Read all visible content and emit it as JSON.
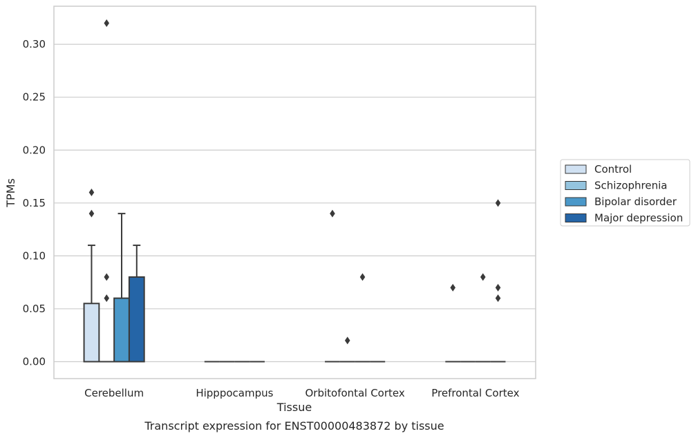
{
  "chart_data": {
    "type": "box",
    "xlabel": "Tissue",
    "ylabel": "TPMs",
    "caption": "Transcript expression for ENST00000483872 by tissue",
    "categories": [
      "Cerebellum",
      "Hipppocampus",
      "Orbitofontal Cortex",
      "Prefrontal Cortex"
    ],
    "ylim": [
      -0.016,
      0.336
    ],
    "yticks": [
      "0.00",
      "0.05",
      "0.10",
      "0.15",
      "0.20",
      "0.25",
      "0.30"
    ],
    "grid": true,
    "legend_position": "right",
    "series": [
      {
        "name": "Control",
        "color": "#d0e1f2",
        "boxes": [
          {
            "q1": 0,
            "median": 0,
            "q3": 0.055,
            "whisker_low": 0,
            "whisker_high": 0.11,
            "outliers": [
              0.14,
              0.16
            ]
          },
          {
            "q1": 0,
            "median": 0,
            "q3": 0,
            "whisker_low": 0,
            "whisker_high": 0,
            "outliers": []
          },
          {
            "q1": 0,
            "median": 0,
            "q3": 0,
            "whisker_low": 0,
            "whisker_high": 0,
            "outliers": [
              0.14
            ]
          },
          {
            "q1": 0,
            "median": 0,
            "q3": 0,
            "whisker_low": 0,
            "whisker_high": 0,
            "outliers": [
              0.07
            ]
          }
        ]
      },
      {
        "name": "Schizophrenia",
        "color": "#94c4df",
        "boxes": [
          {
            "q1": 0,
            "median": 0,
            "q3": 0,
            "whisker_low": 0,
            "whisker_high": 0,
            "outliers": [
              0.06,
              0.08,
              0.32
            ]
          },
          {
            "q1": 0,
            "median": 0,
            "q3": 0,
            "whisker_low": 0,
            "whisker_high": 0,
            "outliers": []
          },
          {
            "q1": 0,
            "median": 0,
            "q3": 0,
            "whisker_low": 0,
            "whisker_high": 0,
            "outliers": [
              0.02
            ]
          },
          {
            "q1": 0,
            "median": 0,
            "q3": 0,
            "whisker_low": 0,
            "whisker_high": 0,
            "outliers": []
          }
        ]
      },
      {
        "name": "Bipolar disorder",
        "color": "#4a98c9",
        "boxes": [
          {
            "q1": 0,
            "median": 0,
            "q3": 0.06,
            "whisker_low": 0,
            "whisker_high": 0.14,
            "outliers": []
          },
          {
            "q1": 0,
            "median": 0,
            "q3": 0,
            "whisker_low": 0,
            "whisker_high": 0,
            "outliers": []
          },
          {
            "q1": 0,
            "median": 0,
            "q3": 0,
            "whisker_low": 0,
            "whisker_high": 0,
            "outliers": [
              0.08
            ]
          },
          {
            "q1": 0,
            "median": 0,
            "q3": 0,
            "whisker_low": 0,
            "whisker_high": 0,
            "outliers": [
              0.08
            ]
          }
        ]
      },
      {
        "name": "Major depression",
        "color": "#2565a7",
        "boxes": [
          {
            "q1": 0,
            "median": 0,
            "q3": 0.08,
            "whisker_low": 0,
            "whisker_high": 0.11,
            "outliers": []
          },
          {
            "q1": 0,
            "median": 0,
            "q3": 0,
            "whisker_low": 0,
            "whisker_high": 0,
            "outliers": []
          },
          {
            "q1": 0,
            "median": 0,
            "q3": 0,
            "whisker_low": 0,
            "whisker_high": 0,
            "outliers": []
          },
          {
            "q1": 0,
            "median": 0,
            "q3": 0,
            "whisker_low": 0,
            "whisker_high": 0,
            "outliers": [
              0.06,
              0.07,
              0.15
            ]
          }
        ]
      }
    ]
  }
}
